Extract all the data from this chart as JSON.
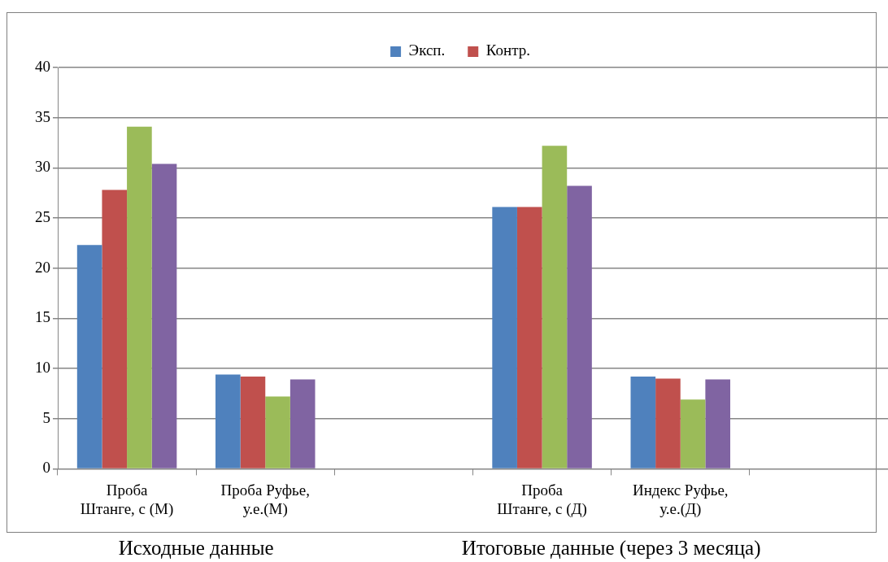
{
  "chart_data": {
    "type": "bar",
    "categories": [
      "Проба Штанге, с (М)",
      "Проба Руфье, у.е.(М)",
      null,
      "Проба Штанге, с (Д)",
      "Индекс Руфье, у.е.(Д)",
      null
    ],
    "series": [
      {
        "name": "Эксп.",
        "color": "#4f81bd",
        "values": [
          22.3,
          9.4,
          null,
          26.1,
          9.2,
          null
        ]
      },
      {
        "name": "Контр.",
        "color": "#c0504d",
        "values": [
          27.8,
          9.2,
          null,
          26.1,
          9.0,
          null
        ]
      },
      {
        "color": "#9bbb59",
        "values": [
          34.1,
          7.2,
          null,
          32.2,
          6.9,
          null
        ]
      },
      {
        "color": "#8064a2",
        "values": [
          30.4,
          8.9,
          null,
          28.2,
          8.9,
          null
        ]
      }
    ],
    "ylim": [
      0,
      40
    ],
    "yticks": [
      0,
      5,
      10,
      15,
      20,
      25,
      30,
      35,
      40
    ],
    "grid": "y",
    "legend": "top",
    "annotations": [
      "Исходные данные",
      "Итоговые данные (через 3 месяца)"
    ]
  }
}
